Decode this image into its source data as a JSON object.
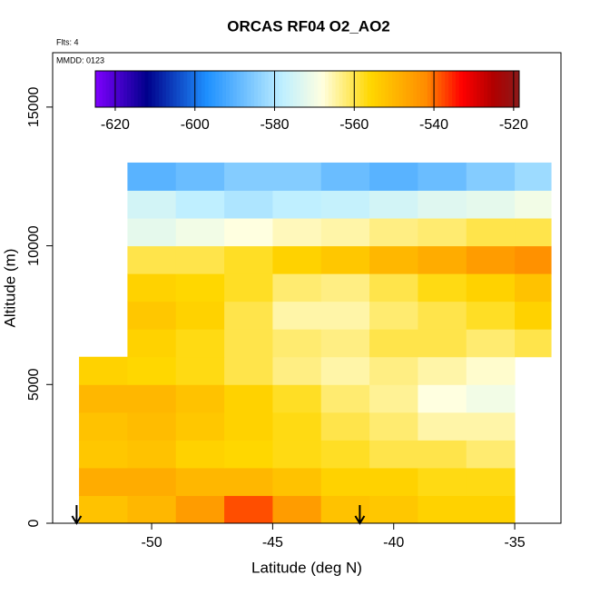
{
  "chart_data": {
    "type": "heatmap",
    "title": "ORCAS RF04 O2_AO2",
    "subtitle": "Flts: 4",
    "annotation": "MMDD: 0123",
    "x_label": "Latitude (deg N)",
    "y_label": "Altitude (m)",
    "xlim": [
      -54.09,
      -33.09
    ],
    "xticks": [
      -50,
      -45,
      -40,
      -35
    ],
    "ylim": [
      0,
      16960
    ],
    "yticks": [
      0,
      5000,
      10000,
      15000
    ],
    "x_edges": [
      -53,
      -51,
      -49,
      -47,
      -45,
      -43,
      -41,
      -39,
      -37,
      -35,
      -33.5
    ],
    "y_edges": [
      0,
      1000,
      2000,
      3000,
      4000,
      5000,
      6000,
      7000,
      8000,
      9000,
      10000,
      11000,
      12000,
      13000
    ],
    "z": [
      [
        -552,
        -550,
        -545,
        -538,
        -545,
        -552,
        -553,
        -555,
        -555,
        null
      ],
      [
        -548,
        -548,
        -550,
        -550,
        -552,
        -555,
        -555,
        -557,
        -557,
        null
      ],
      [
        -553,
        -552,
        -555,
        -556,
        -557,
        -558,
        -560,
        -560,
        -562,
        null
      ],
      [
        -552,
        -551,
        -553,
        -555,
        -557,
        -560,
        -562,
        -565,
        -565,
        null
      ],
      [
        -550,
        -550,
        -552,
        -555,
        -558,
        -562,
        -564,
        -568,
        -570,
        null
      ],
      [
        -555,
        -556,
        -557,
        -560,
        -563,
        -565,
        -563,
        -565,
        -567,
        null
      ],
      [
        null,
        -555,
        -557,
        -560,
        -562,
        -563,
        -560,
        -560,
        -562,
        -560
      ],
      [
        null,
        -553,
        -555,
        -560,
        -565,
        -565,
        -562,
        -560,
        -558,
        -555
      ],
      [
        null,
        -555,
        -556,
        -558,
        -562,
        -563,
        -560,
        -557,
        -555,
        -552
      ],
      [
        null,
        -560,
        -560,
        -558,
        -555,
        -553,
        -550,
        -548,
        -545,
        -543
      ],
      [
        null,
        -572,
        -570,
        -568,
        -566,
        -565,
        -563,
        -562,
        -560,
        -560
      ],
      [
        null,
        -575,
        -578,
        -580,
        -578,
        -577,
        -575,
        -573,
        -572,
        -570
      ],
      [
        null,
        -590,
        -588,
        -585,
        -585,
        -588,
        -590,
        -588,
        -585,
        -582
      ]
    ],
    "colorlim": [
      -625,
      -518.6
    ],
    "colorticks": [
      -620,
      -600,
      -580,
      -560,
      -540,
      -520
    ],
    "colorscale": [
      [
        -625,
        "#7f00ff"
      ],
      [
        -612,
        "#00008b"
      ],
      [
        -597,
        "#1e90ff"
      ],
      [
        -578,
        "#bfefff"
      ],
      [
        -568,
        "#ffffe0"
      ],
      [
        -556,
        "#ffd700"
      ],
      [
        -542,
        "#ff8c00"
      ],
      [
        -533,
        "#ff0000"
      ],
      [
        -525,
        "#b00000"
      ],
      [
        -518.6,
        "#8b1a1a"
      ]
    ],
    "arrows_x": [
      -53.1,
      -41.4
    ]
  }
}
